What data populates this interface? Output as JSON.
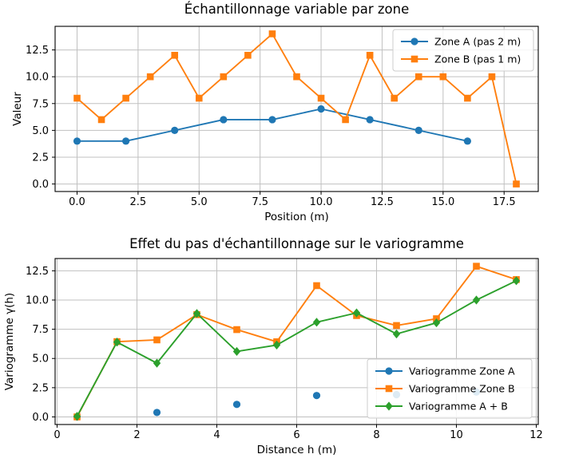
{
  "figure": {
    "background": "#ffffff",
    "text_color": "#000000",
    "grid_color": "#c0c0c0",
    "spine_color": "#000000",
    "legend_border_color": "#cccccc",
    "legend_bg": "#ffffff"
  },
  "chart_data": [
    {
      "type": "line",
      "title": "Échantillonnage variable par zone",
      "xlabel": "Position (m)",
      "ylabel": "Valeur",
      "xlim": [
        -0.9,
        18.9
      ],
      "ylim": [
        -0.7,
        14.7
      ],
      "xticks": [
        0.0,
        2.5,
        5.0,
        7.5,
        10.0,
        12.5,
        15.0,
        17.5
      ],
      "xtick_labels": [
        "0.0",
        "2.5",
        "5.0",
        "7.5",
        "10.0",
        "12.5",
        "15.0",
        "17.5"
      ],
      "yticks": [
        0.0,
        2.5,
        5.0,
        7.5,
        10.0,
        12.5
      ],
      "ytick_labels": [
        "0.0",
        "2.5",
        "5.0",
        "7.5",
        "10.0",
        "12.5"
      ],
      "grid": true,
      "legend_position": "upper right",
      "series": [
        {
          "name": "Zone A (pas 2 m)",
          "color": "#1f77b4",
          "marker": "circle",
          "line": true,
          "x": [
            0,
            2,
            4,
            6,
            8,
            10,
            12,
            14,
            16
          ],
          "y": [
            4,
            4,
            5,
            6,
            6,
            7,
            6,
            5,
            4
          ]
        },
        {
          "name": "Zone B (pas 1 m)",
          "color": "#ff7f0e",
          "marker": "square",
          "line": true,
          "x": [
            0,
            1,
            2,
            3,
            4,
            5,
            6,
            7,
            8,
            9,
            10,
            11,
            12,
            13,
            14,
            15,
            16,
            17,
            18
          ],
          "y": [
            8,
            6,
            8,
            10,
            12,
            8,
            10,
            12,
            14,
            10,
            8,
            6,
            12,
            8,
            10,
            10,
            8,
            10,
            0
          ]
        }
      ]
    },
    {
      "type": "line",
      "title": "Effet du pas d'échantillonnage sur le variogramme",
      "xlabel": "Distance h (m)",
      "ylabel": "Variogramme γ(h)",
      "xlim": [
        -0.05,
        12.05
      ],
      "ylim": [
        -0.65,
        13.55
      ],
      "xticks": [
        0,
        2,
        4,
        6,
        8,
        10,
        12
      ],
      "xtick_labels": [
        "0",
        "2",
        "4",
        "6",
        "8",
        "10",
        "12"
      ],
      "yticks": [
        0.0,
        2.5,
        5.0,
        7.5,
        10.0,
        12.5
      ],
      "ytick_labels": [
        "0.0",
        "2.5",
        "5.0",
        "7.5",
        "10.0",
        "12.5"
      ],
      "grid": true,
      "legend_position": "lower right",
      "series": [
        {
          "name": "Variogramme Zone A",
          "color": "#1f77b4",
          "marker": "circle",
          "line": false,
          "x": [
            0.5,
            2.5,
            4.5,
            6.5,
            8.5,
            10.5
          ],
          "y": [
            0.0,
            0.38,
            1.07,
            1.83,
            1.9,
            2.13
          ]
        },
        {
          "name": "Variogramme Zone B",
          "color": "#ff7f0e",
          "marker": "square",
          "line": true,
          "x": [
            0.5,
            1.5,
            2.5,
            3.5,
            4.5,
            5.5,
            6.5,
            7.5,
            8.5,
            9.5,
            10.5,
            11.5
          ],
          "y": [
            0.0,
            6.44,
            6.59,
            8.75,
            7.47,
            6.43,
            11.23,
            8.67,
            7.82,
            8.4,
            12.89,
            11.75
          ]
        },
        {
          "name": "Variogramme A + B",
          "color": "#2ca02c",
          "marker": "diamond",
          "line": true,
          "x": [
            0.5,
            1.5,
            2.5,
            3.5,
            4.5,
            5.5,
            6.5,
            7.5,
            8.5,
            9.5,
            10.5,
            11.5
          ],
          "y": [
            0.05,
            6.4,
            4.6,
            8.85,
            5.6,
            6.15,
            8.1,
            8.9,
            7.1,
            8.05,
            10.0,
            11.65
          ]
        }
      ]
    }
  ]
}
